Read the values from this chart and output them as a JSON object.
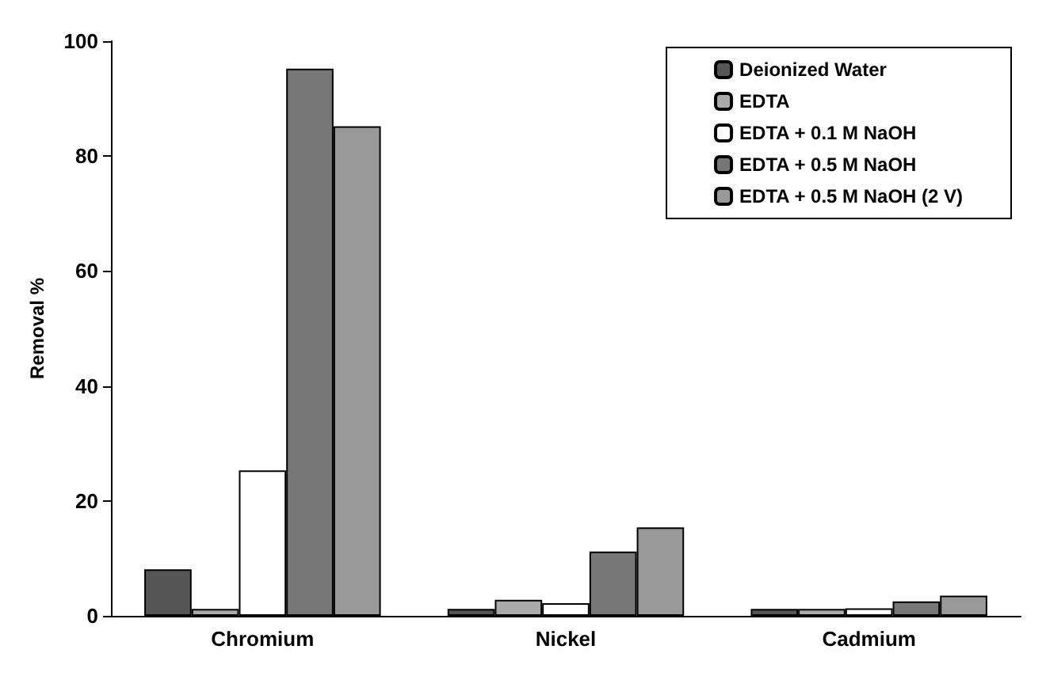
{
  "chart_data": {
    "type": "bar",
    "ylabel": "Removal %",
    "categories": [
      "Chromium",
      "Nickel",
      "Cadmium"
    ],
    "series": [
      {
        "name": "Deionized Water",
        "color": "#555555",
        "values": [
          8.1,
          1.2,
          1.2
        ]
      },
      {
        "name": "EDTA",
        "color": "#aaaaaa",
        "values": [
          1.2,
          2.8,
          1.2
        ]
      },
      {
        "name": "EDTA + 0.1 M NaOH",
        "color": "#ffffff",
        "values": [
          25.3,
          2.2,
          1.3
        ]
      },
      {
        "name": "EDTA + 0.5 M NaOH",
        "color": "#777777",
        "values": [
          95.2,
          11.2,
          2.5
        ]
      },
      {
        "name": "EDTA + 0.5 M NaOH (2 V)",
        "color": "#999999",
        "values": [
          85.2,
          15.4,
          3.5
        ]
      }
    ],
    "ylim": [
      0,
      100
    ],
    "yticks": [
      0,
      20,
      40,
      60,
      80,
      100
    ],
    "grid": false,
    "legend": "top right"
  }
}
